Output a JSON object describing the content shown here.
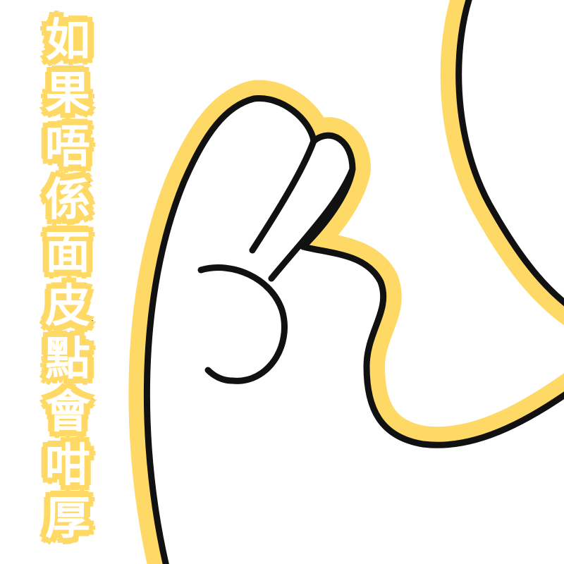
{
  "caption": {
    "text": "如果唔係面皮點會咁厚",
    "chars": [
      "如",
      "果",
      "唔",
      "係",
      "面",
      "皮",
      "點",
      "會",
      "咁",
      "厚"
    ]
  },
  "colors": {
    "outline_glow": "#ffd966",
    "stroke": "#111111",
    "fill": "#ffffff"
  },
  "illustration": {
    "subject": "ok-hand-gesture",
    "icon": "hand-icon"
  }
}
